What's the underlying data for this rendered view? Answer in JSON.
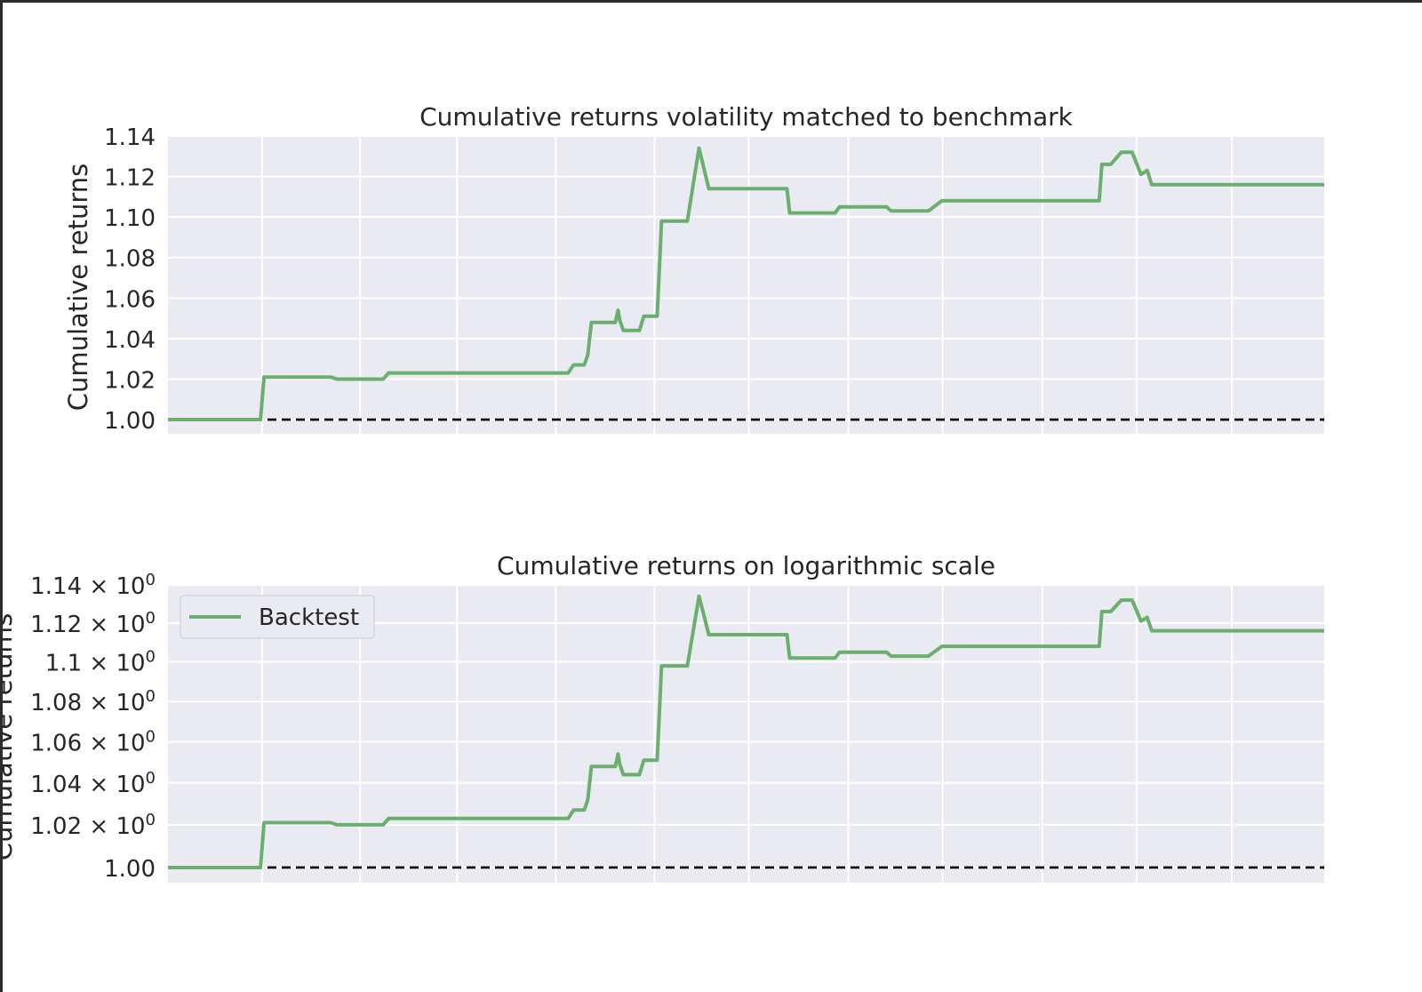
{
  "colors": {
    "panel_bg": "#EAEAF2",
    "grid": "#FFFFFF",
    "series": "#6AAF6E",
    "benchmark_line": "#000000",
    "text": "#262626"
  },
  "chart_data": [
    {
      "type": "line",
      "title": "Cumulative returns volatility matched to benchmark",
      "ylabel": "Cumulative returns",
      "xlabel": "",
      "ylim": [
        0.993,
        1.14
      ],
      "yticks": [
        1.0,
        1.02,
        1.04,
        1.06,
        1.08,
        1.1,
        1.12,
        1.14
      ],
      "ytick_labels": [
        "1.00",
        "1.02",
        "1.04",
        "1.06",
        "1.08",
        "1.10",
        "1.12",
        "1.14"
      ],
      "xlim": [
        0,
        1300
      ],
      "x_gridlines": [
        106,
        216,
        325,
        436,
        547,
        653,
        765,
        871,
        983,
        1089,
        1196
      ],
      "grid": true,
      "legend": null,
      "reference_line": {
        "y": 1.0,
        "style": "dashed"
      },
      "series": [
        {
          "x": [
            0,
            104,
            108,
            183,
            190,
            242,
            248,
            450,
            456,
            468,
            472,
            476,
            503,
            506,
            508,
            512,
            530,
            535,
            550,
            555,
            584,
            597,
            602,
            608,
            696,
            699,
            750,
            755,
            808,
            813,
            855,
            870,
            1047,
            1050,
            1060,
            1072,
            1084,
            1094,
            1101,
            1106,
            1110,
            1300
          ],
          "y": [
            1.0,
            1.0,
            1.021,
            1.021,
            1.02,
            1.02,
            1.023,
            1.023,
            1.027,
            1.027,
            1.032,
            1.048,
            1.048,
            1.054,
            1.049,
            1.044,
            1.044,
            1.051,
            1.051,
            1.098,
            1.098,
            1.134,
            1.125,
            1.114,
            1.114,
            1.102,
            1.102,
            1.105,
            1.105,
            1.103,
            1.103,
            1.108,
            1.108,
            1.126,
            1.126,
            1.132,
            1.132,
            1.121,
            1.123,
            1.116,
            1.116,
            1.116
          ]
        }
      ]
    },
    {
      "type": "line",
      "title": "Cumulative returns on logarithmic scale",
      "ylabel": "Cumulative returns",
      "xlabel": "",
      "yscale": "log",
      "ylim": [
        0.993,
        1.14
      ],
      "yticks": [
        1.0,
        1.02,
        1.04,
        1.06,
        1.08,
        1.1,
        1.12,
        1.14
      ],
      "ytick_labels": [
        {
          "base": "1.00",
          "exp": ""
        },
        {
          "base": "1.02 × 10",
          "exp": "0"
        },
        {
          "base": "1.04 × 10",
          "exp": "0"
        },
        {
          "base": "1.06 × 10",
          "exp": "0"
        },
        {
          "base": "1.08 × 10",
          "exp": "0"
        },
        {
          "base": "1.1 × 10",
          "exp": "0"
        },
        {
          "base": "1.12 × 10",
          "exp": "0"
        },
        {
          "base": "1.14 × 10",
          "exp": "0"
        }
      ],
      "xlim": [
        0,
        1300
      ],
      "x_gridlines": [
        106,
        216,
        325,
        436,
        547,
        653,
        765,
        871,
        983,
        1089,
        1196
      ],
      "grid": true,
      "legend": {
        "position": "upper left",
        "entries": [
          "Backtest"
        ]
      },
      "reference_line": {
        "y": 1.0,
        "style": "dashed"
      },
      "series": [
        {
          "name": "Backtest",
          "x": [
            0,
            104,
            108,
            183,
            190,
            242,
            248,
            450,
            456,
            468,
            472,
            476,
            503,
            506,
            508,
            512,
            530,
            535,
            550,
            555,
            584,
            597,
            602,
            608,
            696,
            699,
            750,
            755,
            808,
            813,
            855,
            870,
            1047,
            1050,
            1060,
            1072,
            1084,
            1094,
            1101,
            1106,
            1110,
            1300
          ],
          "y": [
            1.0,
            1.0,
            1.021,
            1.021,
            1.02,
            1.02,
            1.023,
            1.023,
            1.027,
            1.027,
            1.032,
            1.048,
            1.048,
            1.054,
            1.049,
            1.044,
            1.044,
            1.051,
            1.051,
            1.098,
            1.098,
            1.134,
            1.125,
            1.114,
            1.114,
            1.102,
            1.102,
            1.105,
            1.105,
            1.103,
            1.103,
            1.108,
            1.108,
            1.126,
            1.126,
            1.132,
            1.132,
            1.121,
            1.123,
            1.116,
            1.116,
            1.116
          ]
        }
      ]
    }
  ]
}
